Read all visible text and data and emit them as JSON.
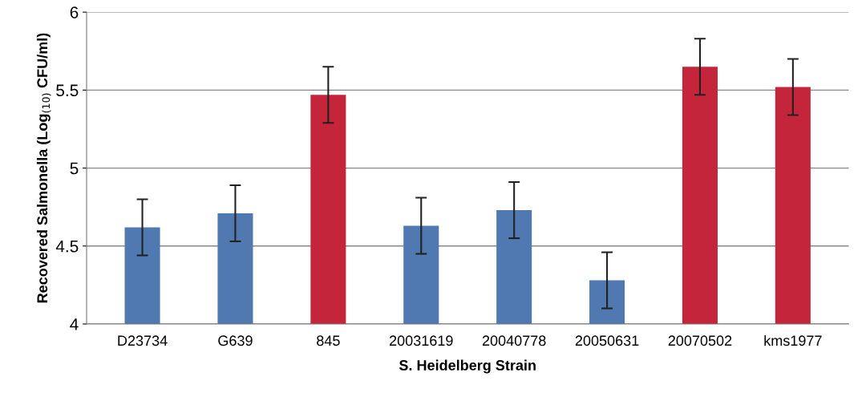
{
  "chart_data": {
    "type": "bar",
    "categories": [
      "D23734",
      "G639",
      "845",
      "20031619",
      "20040778",
      "20050631",
      "20070502",
      "kms1977"
    ],
    "values": [
      4.62,
      4.71,
      5.47,
      4.63,
      4.73,
      4.28,
      5.65,
      5.52
    ],
    "errors": [
      0.18,
      0.18,
      0.18,
      0.18,
      0.18,
      0.18,
      0.18,
      0.18
    ],
    "colors": [
      "#4f79b0",
      "#4f79b0",
      "#c4253a",
      "#4f79b0",
      "#4f79b0",
      "#4f79b0",
      "#c4253a",
      "#c4253a"
    ],
    "xlabel": "S. Heidelberg Strain",
    "ylabel": "Recovered Salmonella (Log$_{(10)}$ CFU/ml)",
    "ylim": [
      4,
      6
    ],
    "yticks": [
      4,
      4.5,
      5,
      5.5,
      6
    ],
    "grid": "y"
  }
}
